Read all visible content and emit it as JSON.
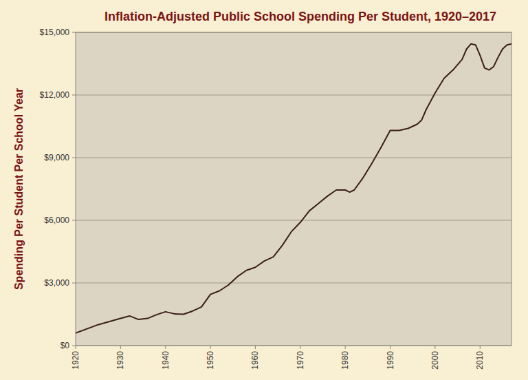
{
  "chart_data": {
    "type": "line",
    "title": "Inflation-Adjusted Public School Spending Per Student, 1920–2017",
    "y_label": "Spending Per Student Per School Year",
    "x": [
      1920,
      1925,
      1930,
      1932,
      1934,
      1936,
      1938,
      1940,
      1942,
      1944,
      1946,
      1948,
      1950,
      1952,
      1954,
      1956,
      1958,
      1960,
      1962,
      1964,
      1966,
      1968,
      1970,
      1972,
      1974,
      1976,
      1978,
      1980,
      1981,
      1982,
      1984,
      1986,
      1988,
      1990,
      1992,
      1994,
      1996,
      1997,
      1998,
      2000,
      2002,
      2004,
      2006,
      2007,
      2008,
      2009,
      2010,
      2011,
      2012,
      2013,
      2014,
      2015,
      2016,
      2017
    ],
    "values": [
      600,
      1000,
      1300,
      1420,
      1250,
      1300,
      1480,
      1620,
      1520,
      1500,
      1650,
      1850,
      2450,
      2620,
      2900,
      3300,
      3600,
      3750,
      4050,
      4250,
      4800,
      5450,
      5900,
      6450,
      6800,
      7150,
      7450,
      7450,
      7350,
      7450,
      8050,
      8750,
      9500,
      10300,
      10300,
      10400,
      10600,
      10800,
      11300,
      12100,
      12800,
      13200,
      13700,
      14200,
      14450,
      14400,
      13900,
      13300,
      13200,
      13350,
      13800,
      14200,
      14400,
      14450
    ],
    "color": "#3b1f1a",
    "xlim": [
      1920,
      2017
    ],
    "xticks": [
      1920,
      1930,
      1940,
      1950,
      1960,
      1970,
      1980,
      1990,
      2000,
      2010
    ],
    "ylim": [
      0,
      15000
    ],
    "yticks": [
      {
        "value": 0,
        "label": "$0"
      },
      {
        "value": 3000,
        "label": "$3,000"
      },
      {
        "value": 6000,
        "label": "$6,000"
      },
      {
        "value": 9000,
        "label": "$9,000"
      },
      {
        "value": 12000,
        "label": "$12,000"
      },
      {
        "value": 15000,
        "label": "$15,000"
      }
    ],
    "grid": true
  }
}
